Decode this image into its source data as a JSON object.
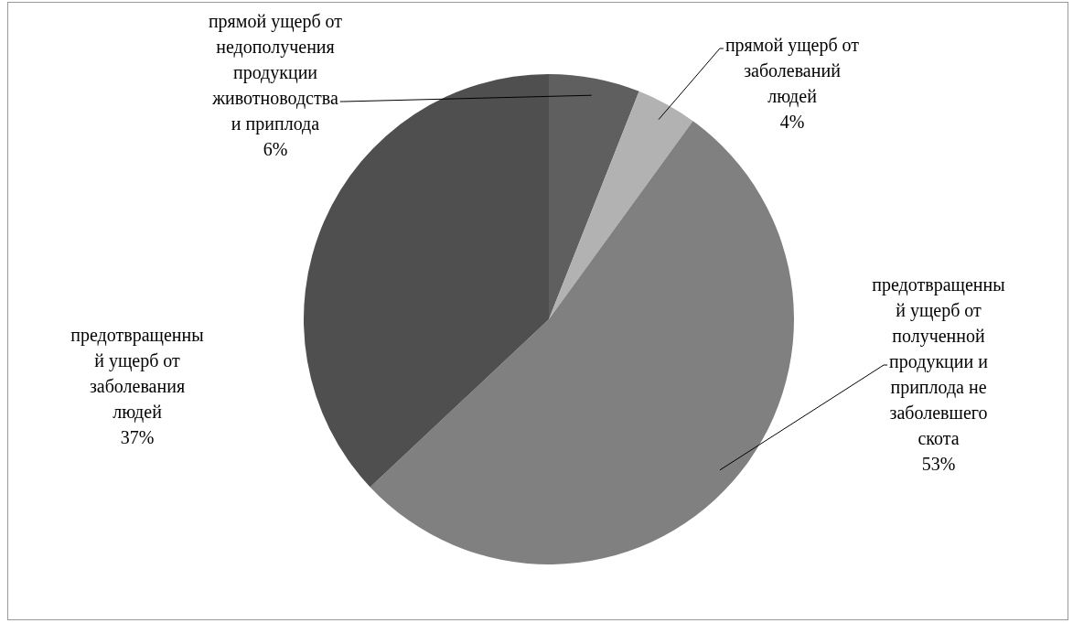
{
  "chart_data": {
    "type": "pie",
    "categories": [
      "прямой ущерб от недополучения продукции животноводства и приплода",
      "прямой ущерб от заболеваний людей",
      "предотвращенный ущерб от полученной продукции и приплода не заболевшего скота",
      "предотвращенный ущерб от заболевания людей"
    ],
    "values": [
      6,
      4,
      53,
      37
    ],
    "value_labels": [
      "6%",
      "4%",
      "53%",
      "37%"
    ],
    "colors": [
      "#5f5f5f",
      "#b2b2b2",
      "#808080",
      "#4f4f4f"
    ],
    "legend": false
  }
}
